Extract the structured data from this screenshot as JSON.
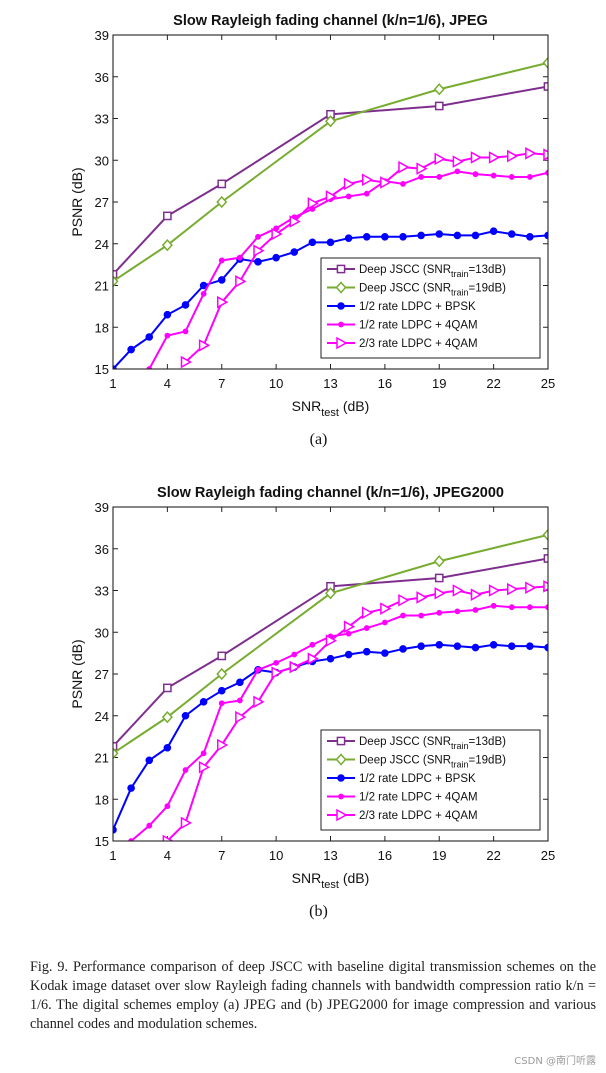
{
  "figure": {
    "caption_label": "Fig. 9.",
    "caption_text": "Performance comparison of deep JSCC with baseline digital transmission schemes on the Kodak image dataset over slow Rayleigh fading channels with bandwidth compression ratio k/n = 1/6. The digital schemes employ (a) JPEG and (b) JPEG2000 for image compression and various channel codes and modulation schemes.",
    "watermark": "CSDN @南门听露"
  },
  "chart_data": [
    {
      "type": "line",
      "panel_label": "(a)",
      "title": "Slow Rayleigh fading channel (k/n=1/6), JPEG",
      "xlabel": "SNR",
      "xlabel_sub": "test",
      "xlabel_unit": " (dB)",
      "ylabel": "PSNR (dB)",
      "xlim": [
        1,
        25
      ],
      "ylim": [
        15,
        39
      ],
      "xticks": [
        1,
        4,
        7,
        10,
        13,
        16,
        19,
        22,
        25
      ],
      "yticks": [
        15,
        18,
        21,
        24,
        27,
        30,
        33,
        36,
        39
      ],
      "grid": false,
      "legend_position": "bottom-right",
      "series": [
        {
          "name": "Deep JSCC (SNR",
          "name_sub": "train",
          "name_tail": "=13dB)",
          "color": "#7e2f8e",
          "marker": "square",
          "x": [
            1,
            4,
            7,
            13,
            19,
            25
          ],
          "y": [
            21.8,
            26.0,
            28.3,
            33.3,
            33.9,
            35.3
          ]
        },
        {
          "name": "Deep JSCC (SNR",
          "name_sub": "train",
          "name_tail": "=19dB)",
          "color": "#77ac30",
          "marker": "diamond",
          "x": [
            1,
            4,
            7,
            13,
            19,
            25
          ],
          "y": [
            21.3,
            23.9,
            27.0,
            32.8,
            35.1,
            37.0
          ]
        },
        {
          "name": "1/2 rate LDPC + BPSK",
          "color": "#0000ff",
          "marker": "circle",
          "x": [
            1,
            2,
            3,
            4,
            5,
            6,
            7,
            8,
            9,
            10,
            11,
            12,
            13,
            14,
            15,
            16,
            17,
            18,
            19,
            20,
            21,
            22,
            23,
            24,
            25
          ],
          "y": [
            15.0,
            16.4,
            17.3,
            18.9,
            19.6,
            21.0,
            21.4,
            22.9,
            22.7,
            23.0,
            23.4,
            24.1,
            24.1,
            24.4,
            24.5,
            24.5,
            24.5,
            24.6,
            24.7,
            24.6,
            24.6,
            24.9,
            24.7,
            24.5,
            24.6
          ]
        },
        {
          "name": "1/2 rate LDPC + 4QAM",
          "color": "#ff00ff",
          "marker": "dot",
          "x": [
            3,
            4,
            5,
            6,
            7,
            8,
            9,
            10,
            11,
            12,
            13,
            14,
            15,
            16,
            17,
            18,
            19,
            20,
            21,
            22,
            23,
            24,
            25
          ],
          "y": [
            15.0,
            17.4,
            17.7,
            20.4,
            22.8,
            23.0,
            24.5,
            25.1,
            25.9,
            26.5,
            27.2,
            27.4,
            27.6,
            28.5,
            28.3,
            28.8,
            28.8,
            29.2,
            29.0,
            28.9,
            28.8,
            28.8,
            29.1
          ]
        },
        {
          "name": "2/3 rate LDPC + 4QAM",
          "color": "#ff00ff",
          "marker": "triangle",
          "x": [
            5,
            6,
            7,
            8,
            9,
            10,
            11,
            12,
            13,
            14,
            15,
            16,
            17,
            18,
            19,
            20,
            21,
            22,
            23,
            24,
            25
          ],
          "y": [
            15.5,
            16.7,
            19.8,
            21.3,
            23.5,
            24.7,
            25.6,
            26.9,
            27.4,
            28.3,
            28.6,
            28.4,
            29.5,
            29.4,
            30.1,
            29.9,
            30.2,
            30.2,
            30.3,
            30.5,
            30.4
          ]
        }
      ]
    },
    {
      "type": "line",
      "panel_label": "(b)",
      "title": "Slow Rayleigh fading channel (k/n=1/6), JPEG2000",
      "xlabel": "SNR",
      "xlabel_sub": "test",
      "xlabel_unit": " (dB)",
      "ylabel": "PSNR (dB)",
      "xlim": [
        1,
        25
      ],
      "ylim": [
        15,
        39
      ],
      "xticks": [
        1,
        4,
        7,
        10,
        13,
        16,
        19,
        22,
        25
      ],
      "yticks": [
        15,
        18,
        21,
        24,
        27,
        30,
        33,
        36,
        39
      ],
      "grid": false,
      "legend_position": "bottom-right",
      "series": [
        {
          "name": "Deep JSCC (SNR",
          "name_sub": "train",
          "name_tail": "=13dB)",
          "color": "#7e2f8e",
          "marker": "square",
          "x": [
            1,
            4,
            7,
            13,
            19,
            25
          ],
          "y": [
            21.8,
            26.0,
            28.3,
            33.3,
            33.9,
            35.3
          ]
        },
        {
          "name": "Deep JSCC (SNR",
          "name_sub": "train",
          "name_tail": "=19dB)",
          "color": "#77ac30",
          "marker": "diamond",
          "x": [
            1,
            4,
            7,
            13,
            19,
            25
          ],
          "y": [
            21.3,
            23.9,
            27.0,
            32.8,
            35.1,
            37.0
          ]
        },
        {
          "name": "1/2 rate LDPC + BPSK",
          "color": "#0000ff",
          "marker": "circle",
          "x": [
            1,
            2,
            3,
            4,
            5,
            6,
            7,
            8,
            9,
            10,
            11,
            12,
            13,
            14,
            15,
            16,
            17,
            18,
            19,
            20,
            21,
            22,
            23,
            24,
            25
          ],
          "y": [
            15.8,
            18.8,
            20.8,
            21.7,
            24.0,
            25.0,
            25.8,
            26.4,
            27.3,
            27.1,
            27.5,
            27.9,
            28.1,
            28.4,
            28.6,
            28.5,
            28.8,
            29.0,
            29.1,
            29.0,
            28.9,
            29.1,
            29.0,
            29.0,
            28.9
          ]
        },
        {
          "name": "1/2 rate LDPC + 4QAM",
          "color": "#ff00ff",
          "marker": "dot",
          "x": [
            2,
            3,
            4,
            5,
            6,
            7,
            8,
            9,
            10,
            11,
            12,
            13,
            14,
            15,
            16,
            17,
            18,
            19,
            20,
            21,
            22,
            23,
            24,
            25
          ],
          "y": [
            15.0,
            16.1,
            17.5,
            20.1,
            21.3,
            24.9,
            25.1,
            27.3,
            27.8,
            28.4,
            29.1,
            29.7,
            29.9,
            30.3,
            30.7,
            31.2,
            31.2,
            31.4,
            31.5,
            31.6,
            31.9,
            31.8,
            31.8,
            31.8
          ]
        },
        {
          "name": "2/3 rate LDPC + 4QAM",
          "color": "#ff00ff",
          "marker": "triangle",
          "x": [
            4,
            5,
            6,
            7,
            8,
            9,
            10,
            11,
            12,
            13,
            14,
            15,
            16,
            17,
            18,
            19,
            20,
            21,
            22,
            23,
            24,
            25
          ],
          "y": [
            15.0,
            16.3,
            20.3,
            21.9,
            23.9,
            25.0,
            27.1,
            27.5,
            28.1,
            29.4,
            30.4,
            31.4,
            31.7,
            32.3,
            32.5,
            32.8,
            33.0,
            32.7,
            33.0,
            33.1,
            33.2,
            33.3
          ]
        }
      ]
    }
  ]
}
